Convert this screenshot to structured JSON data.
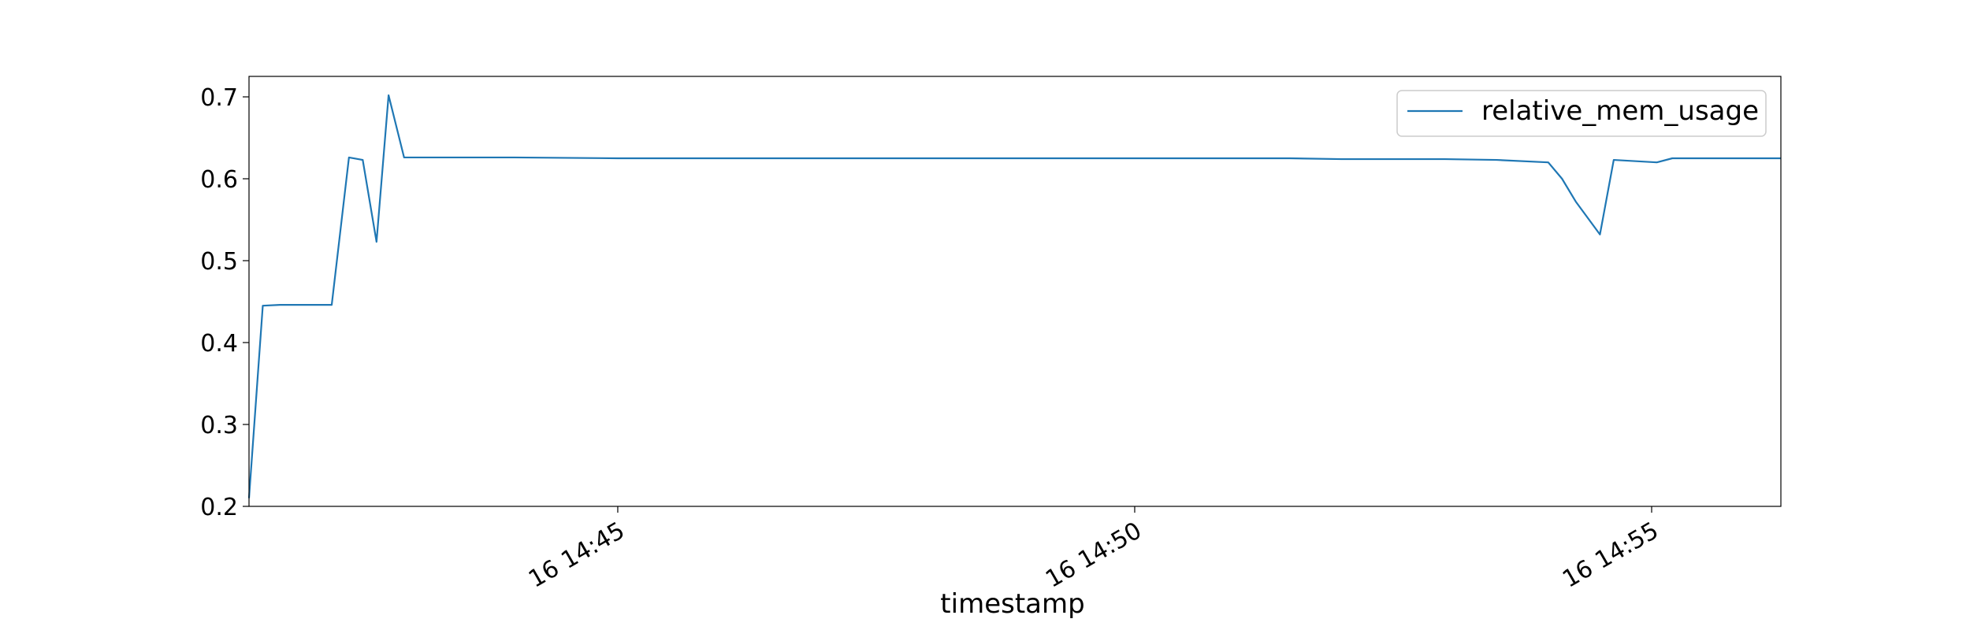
{
  "chart_data": {
    "type": "line",
    "xlabel": "timestamp",
    "ylabel": "",
    "title": "",
    "ylim": [
      0.2,
      0.725
    ],
    "xlim": [
      "2000-01-16T14:41:26",
      "2000-01-16T14:56:15"
    ],
    "date_prefix": "2000-01-",
    "y_ticks": [
      0.2,
      0.3,
      0.4,
      0.5,
      0.6,
      0.7
    ],
    "x_ticks": [
      {
        "at": "2000-01-16T14:45:00",
        "label": "16 14:45"
      },
      {
        "at": "2000-01-16T14:50:00",
        "label": "16 14:50"
      },
      {
        "at": "2000-01-16T14:55:00",
        "label": "16 14:55"
      }
    ],
    "legend": {
      "position": "upper right"
    },
    "series": [
      {
        "name": "relative_mem_usage",
        "color": "#1f77b4",
        "points": [
          [
            "2000-01-16T14:41:26",
            0.21
          ],
          [
            "2000-01-16T14:41:34",
            0.445
          ],
          [
            "2000-01-16T14:41:44",
            0.446
          ],
          [
            "2000-01-16T14:42:14",
            0.446
          ],
          [
            "2000-01-16T14:42:24",
            0.626
          ],
          [
            "2000-01-16T14:42:32",
            0.623
          ],
          [
            "2000-01-16T14:42:40",
            0.523
          ],
          [
            "2000-01-16T14:42:47",
            0.702
          ],
          [
            "2000-01-16T14:42:56",
            0.626
          ],
          [
            "2000-01-16T14:44:00",
            0.626
          ],
          [
            "2000-01-16T14:45:00",
            0.625
          ],
          [
            "2000-01-16T14:46:00",
            0.625
          ],
          [
            "2000-01-16T14:47:00",
            0.625
          ],
          [
            "2000-01-16T14:48:00",
            0.625
          ],
          [
            "2000-01-16T14:49:00",
            0.625
          ],
          [
            "2000-01-16T14:50:00",
            0.625
          ],
          [
            "2000-01-16T14:51:00",
            0.625
          ],
          [
            "2000-01-16T14:51:30",
            0.625
          ],
          [
            "2000-01-16T14:52:00",
            0.624
          ],
          [
            "2000-01-16T14:53:00",
            0.624
          ],
          [
            "2000-01-16T14:53:30",
            0.623
          ],
          [
            "2000-01-16T14:54:00",
            0.62
          ],
          [
            "2000-01-16T14:54:08",
            0.6
          ],
          [
            "2000-01-16T14:54:16",
            0.572
          ],
          [
            "2000-01-16T14:54:30",
            0.532
          ],
          [
            "2000-01-16T14:54:38",
            0.623
          ],
          [
            "2000-01-16T14:55:03",
            0.62
          ],
          [
            "2000-01-16T14:55:12",
            0.625
          ],
          [
            "2000-01-16T14:56:15",
            0.625
          ]
        ]
      }
    ]
  }
}
